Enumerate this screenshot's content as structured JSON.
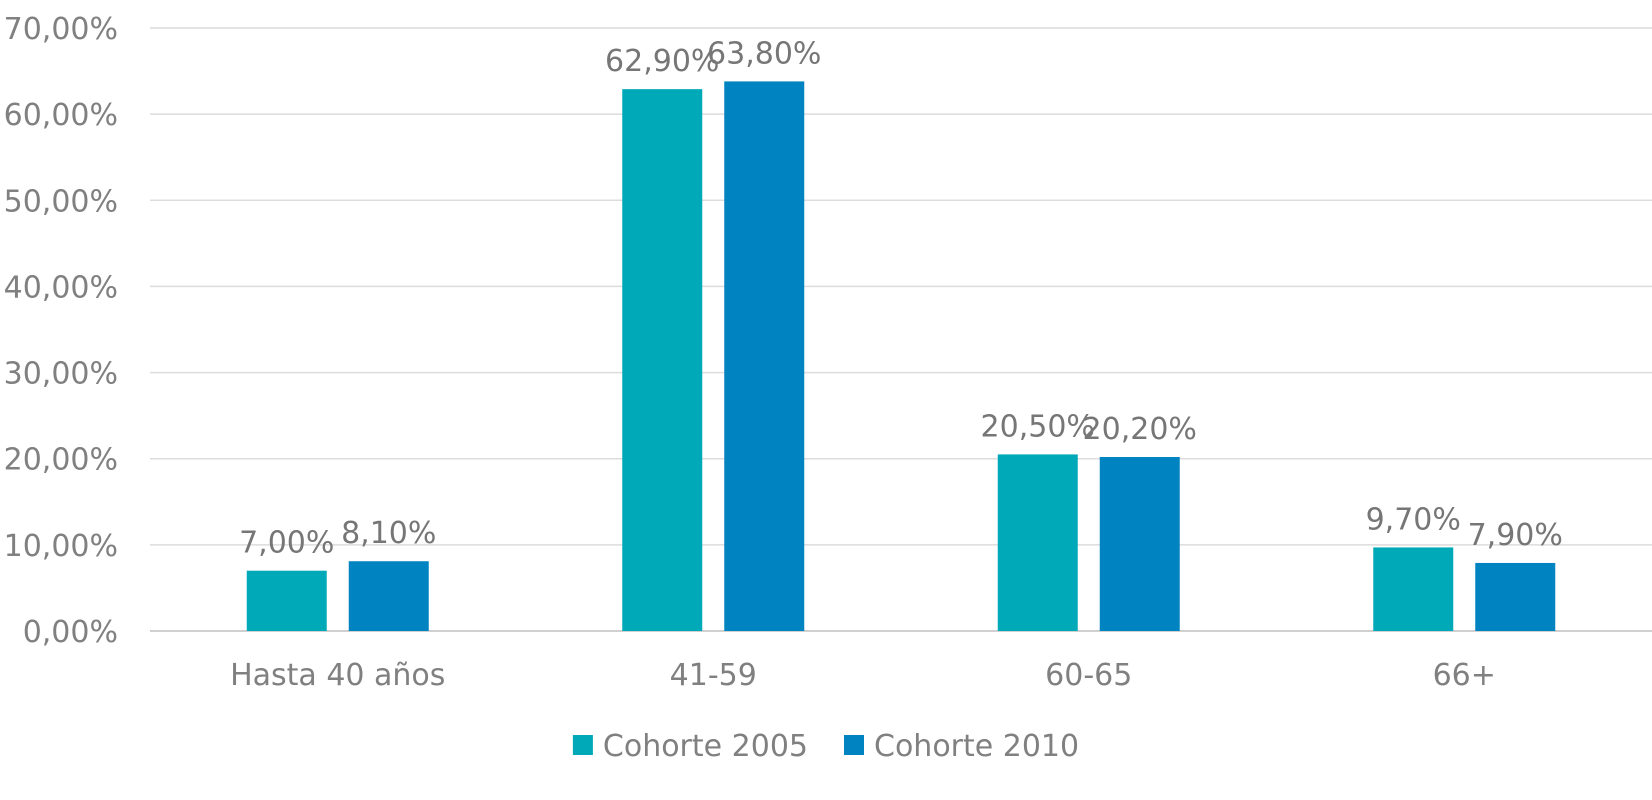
{
  "chart_data": {
    "type": "bar",
    "categories": [
      "Hasta 40 años",
      "41-59",
      "60-65",
      "66+"
    ],
    "series": [
      {
        "name": "Cohorte 2005",
        "color": "#00A9B7",
        "values": [
          7.0,
          62.9,
          20.5,
          9.7
        ],
        "labels": [
          "7,00%",
          "62,90%",
          "20,50%",
          "9,70%"
        ]
      },
      {
        "name": "Cohorte 2010",
        "color": "#0083C1",
        "values": [
          8.1,
          63.8,
          20.2,
          7.9
        ],
        "labels": [
          "8,10%",
          "63,80%",
          "20,20%",
          "7,90%"
        ]
      }
    ],
    "yticks": [
      "0,00%",
      "10,00%",
      "20,00%",
      "30,00%",
      "40,00%",
      "50,00%",
      "60,00%",
      "70,00%"
    ],
    "ylim": [
      0,
      70
    ],
    "grid": true,
    "legend_position": "bottom"
  }
}
